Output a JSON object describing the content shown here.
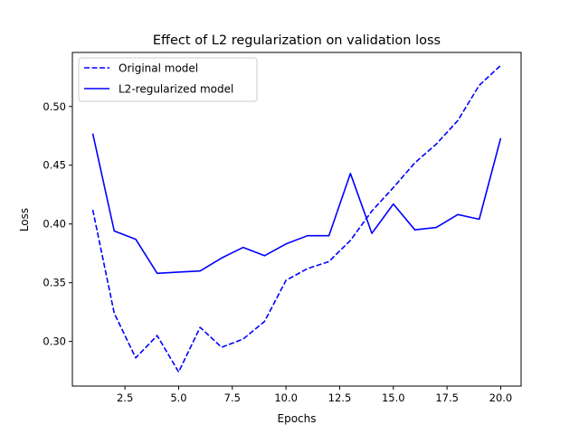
{
  "chart_data": {
    "type": "line",
    "title": "Effect of L2 regularization on validation loss",
    "xlabel": "Epochs",
    "ylabel": "Loss",
    "xlim": [
      0.05,
      20.95
    ],
    "ylim": [
      0.262,
      0.546
    ],
    "x_ticks": [
      2.5,
      5.0,
      7.5,
      10.0,
      12.5,
      15.0,
      17.5,
      20.0
    ],
    "x_tick_labels": [
      "2.5",
      "5.0",
      "7.5",
      "10.0",
      "12.5",
      "15.0",
      "17.5",
      "20.0"
    ],
    "y_ticks": [
      0.3,
      0.35,
      0.4,
      0.45,
      0.5
    ],
    "y_tick_labels": [
      "0.30",
      "0.35",
      "0.40",
      "0.45",
      "0.50"
    ],
    "grid": false,
    "legend_position": "upper-left",
    "x": [
      1,
      2,
      3,
      4,
      5,
      6,
      7,
      8,
      9,
      10,
      11,
      12,
      13,
      14,
      15,
      16,
      17,
      18,
      19,
      20
    ],
    "series": [
      {
        "name": "Original model",
        "style": "dashed",
        "color": "#0000ff",
        "values": [
          0.412,
          0.324,
          0.286,
          0.305,
          0.274,
          0.312,
          0.295,
          0.302,
          0.317,
          0.352,
          0.362,
          0.368,
          0.386,
          0.411,
          0.431,
          0.452,
          0.468,
          0.488,
          0.518,
          0.535
        ]
      },
      {
        "name": "L2-regularized model",
        "style": "solid",
        "color": "#0000ff",
        "values": [
          0.477,
          0.394,
          0.387,
          0.358,
          0.359,
          0.36,
          0.371,
          0.38,
          0.373,
          0.383,
          0.39,
          0.39,
          0.443,
          0.392,
          0.417,
          0.395,
          0.397,
          0.408,
          0.404,
          0.473
        ]
      }
    ]
  }
}
